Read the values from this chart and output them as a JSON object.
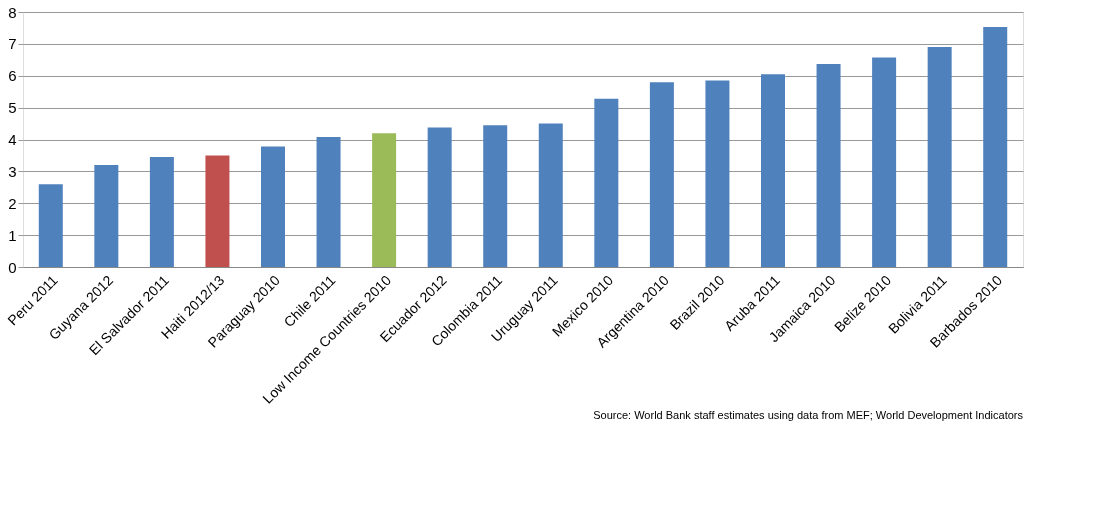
{
  "chart_data": {
    "type": "bar",
    "categories": [
      "Peru 2011",
      "Guyana 2012",
      "El Salvador 2011",
      "Haiti 2012/13",
      "Paraguay 2010",
      "Chile 2011",
      "Low Income Countries 2010",
      "Ecuador 2012",
      "Colombia 2011",
      "Uruguay 2011",
      "Mexico 2010",
      "Argentina 2010",
      "Brazil 2010",
      "Aruba 2011",
      "Jamaica 2010",
      "Belize 2010",
      "Bolivia 2011",
      "Barbados 2010"
    ],
    "values": [
      2.6,
      3.2,
      3.45,
      3.5,
      3.78,
      4.08,
      4.2,
      4.38,
      4.45,
      4.5,
      5.28,
      5.8,
      5.85,
      6.05,
      6.37,
      6.57,
      6.9,
      7.53
    ],
    "colors": [
      "#4f81bd",
      "#4f81bd",
      "#4f81bd",
      "#c0504d",
      "#4f81bd",
      "#4f81bd",
      "#9bbb59",
      "#4f81bd",
      "#4f81bd",
      "#4f81bd",
      "#4f81bd",
      "#4f81bd",
      "#4f81bd",
      "#4f81bd",
      "#4f81bd",
      "#4f81bd",
      "#4f81bd",
      "#4f81bd"
    ],
    "ylim": [
      0,
      8
    ],
    "yticks": [
      0,
      1,
      2,
      3,
      4,
      5,
      6,
      7,
      8
    ],
    "grid": "y",
    "annotations": [
      "Source: World Bank staff estimates using data from MEF; World Development Indicators"
    ]
  }
}
